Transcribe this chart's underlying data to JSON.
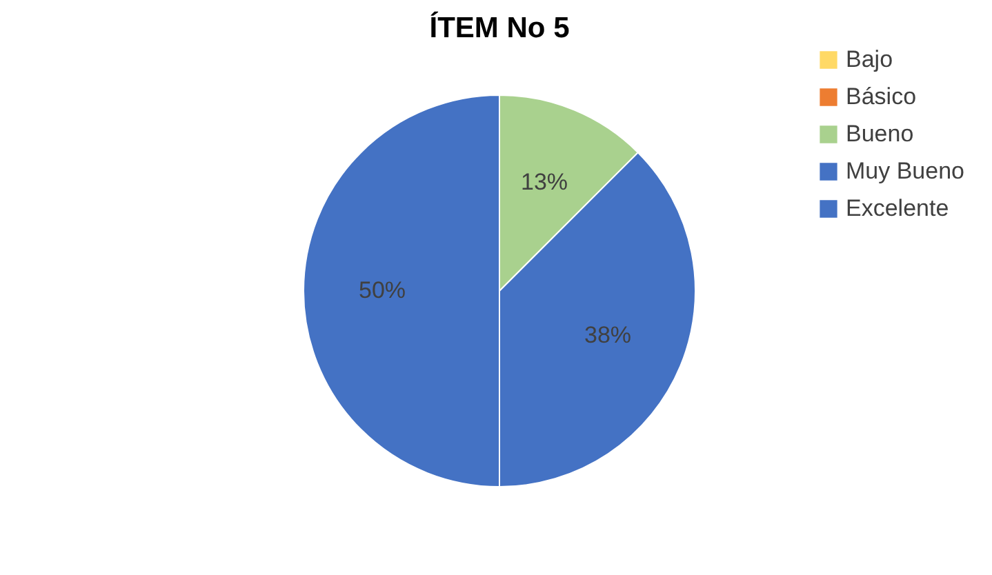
{
  "chart_data": {
    "type": "pie",
    "title": "ÍTEM No 5",
    "categories": [
      "Bajo",
      "Básico",
      "Bueno",
      "Muy Bueno",
      "Excelente"
    ],
    "values": [
      0,
      0,
      12.5,
      37.5,
      50
    ],
    "value_labels": [
      null,
      null,
      "13%",
      "38%",
      "50%"
    ],
    "colors": [
      "#ffd966",
      "#ed7d31",
      "#a9d18e",
      "#4472c4",
      "#4472c4"
    ],
    "legend": "right"
  }
}
